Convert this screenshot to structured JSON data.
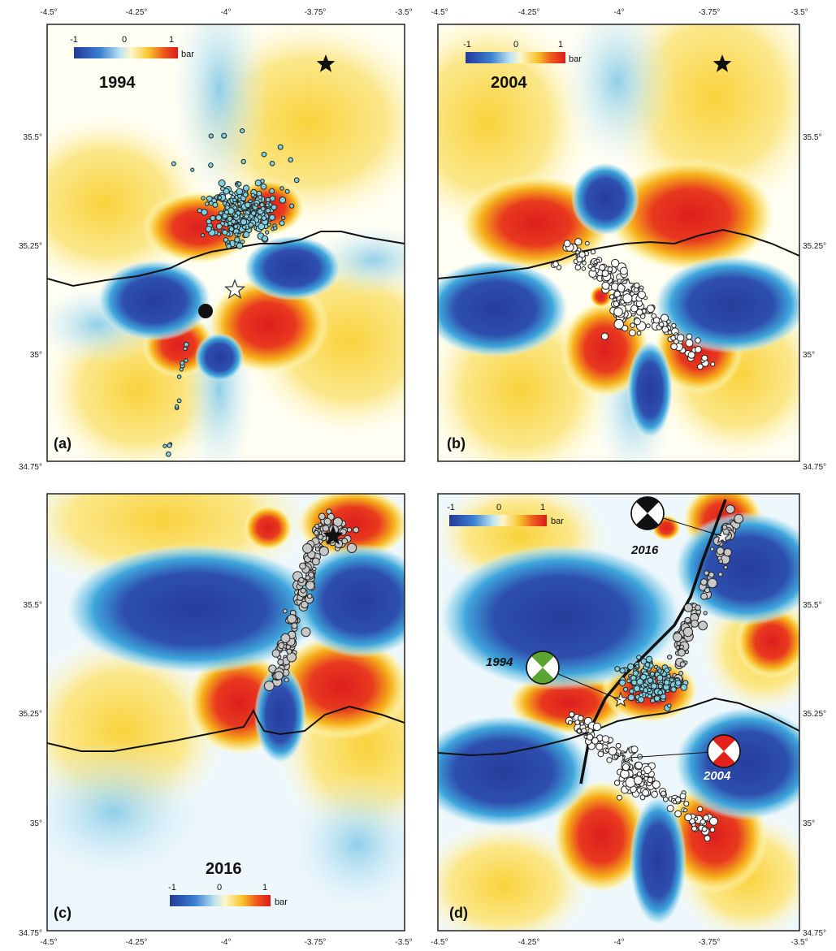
{
  "lon_ticks": [
    "-4.5°",
    "-4.25°",
    "-4°",
    "-3.75°",
    "-3.5°"
  ],
  "lat_ticks": [
    "35.5°",
    "35.25°",
    "35°",
    "34.75°"
  ],
  "colorbar": {
    "min": "-1",
    "mid": "0",
    "max": "1",
    "unit": "bar"
  },
  "panels": {
    "a": {
      "label": "(a)",
      "year": "1994"
    },
    "b": {
      "label": "(b)",
      "year": "2004"
    },
    "c": {
      "label": "(c)",
      "year": "2016"
    },
    "d": {
      "label": "(d)"
    }
  },
  "mechanisms": {
    "m2016": {
      "label": "2016",
      "color": "#111111"
    },
    "m1994": {
      "label": "1994",
      "color": "#5aa532"
    },
    "m2004": {
      "label": "2004",
      "color": "#e2221b"
    }
  },
  "colors": {
    "negative": "#2a3f9e",
    "positive": "#e0281e",
    "neutral": "#ffffff",
    "events_1994": "#7fd0e0",
    "events_2004": "#ffffff",
    "events_2016": "#c8c8c8"
  }
}
